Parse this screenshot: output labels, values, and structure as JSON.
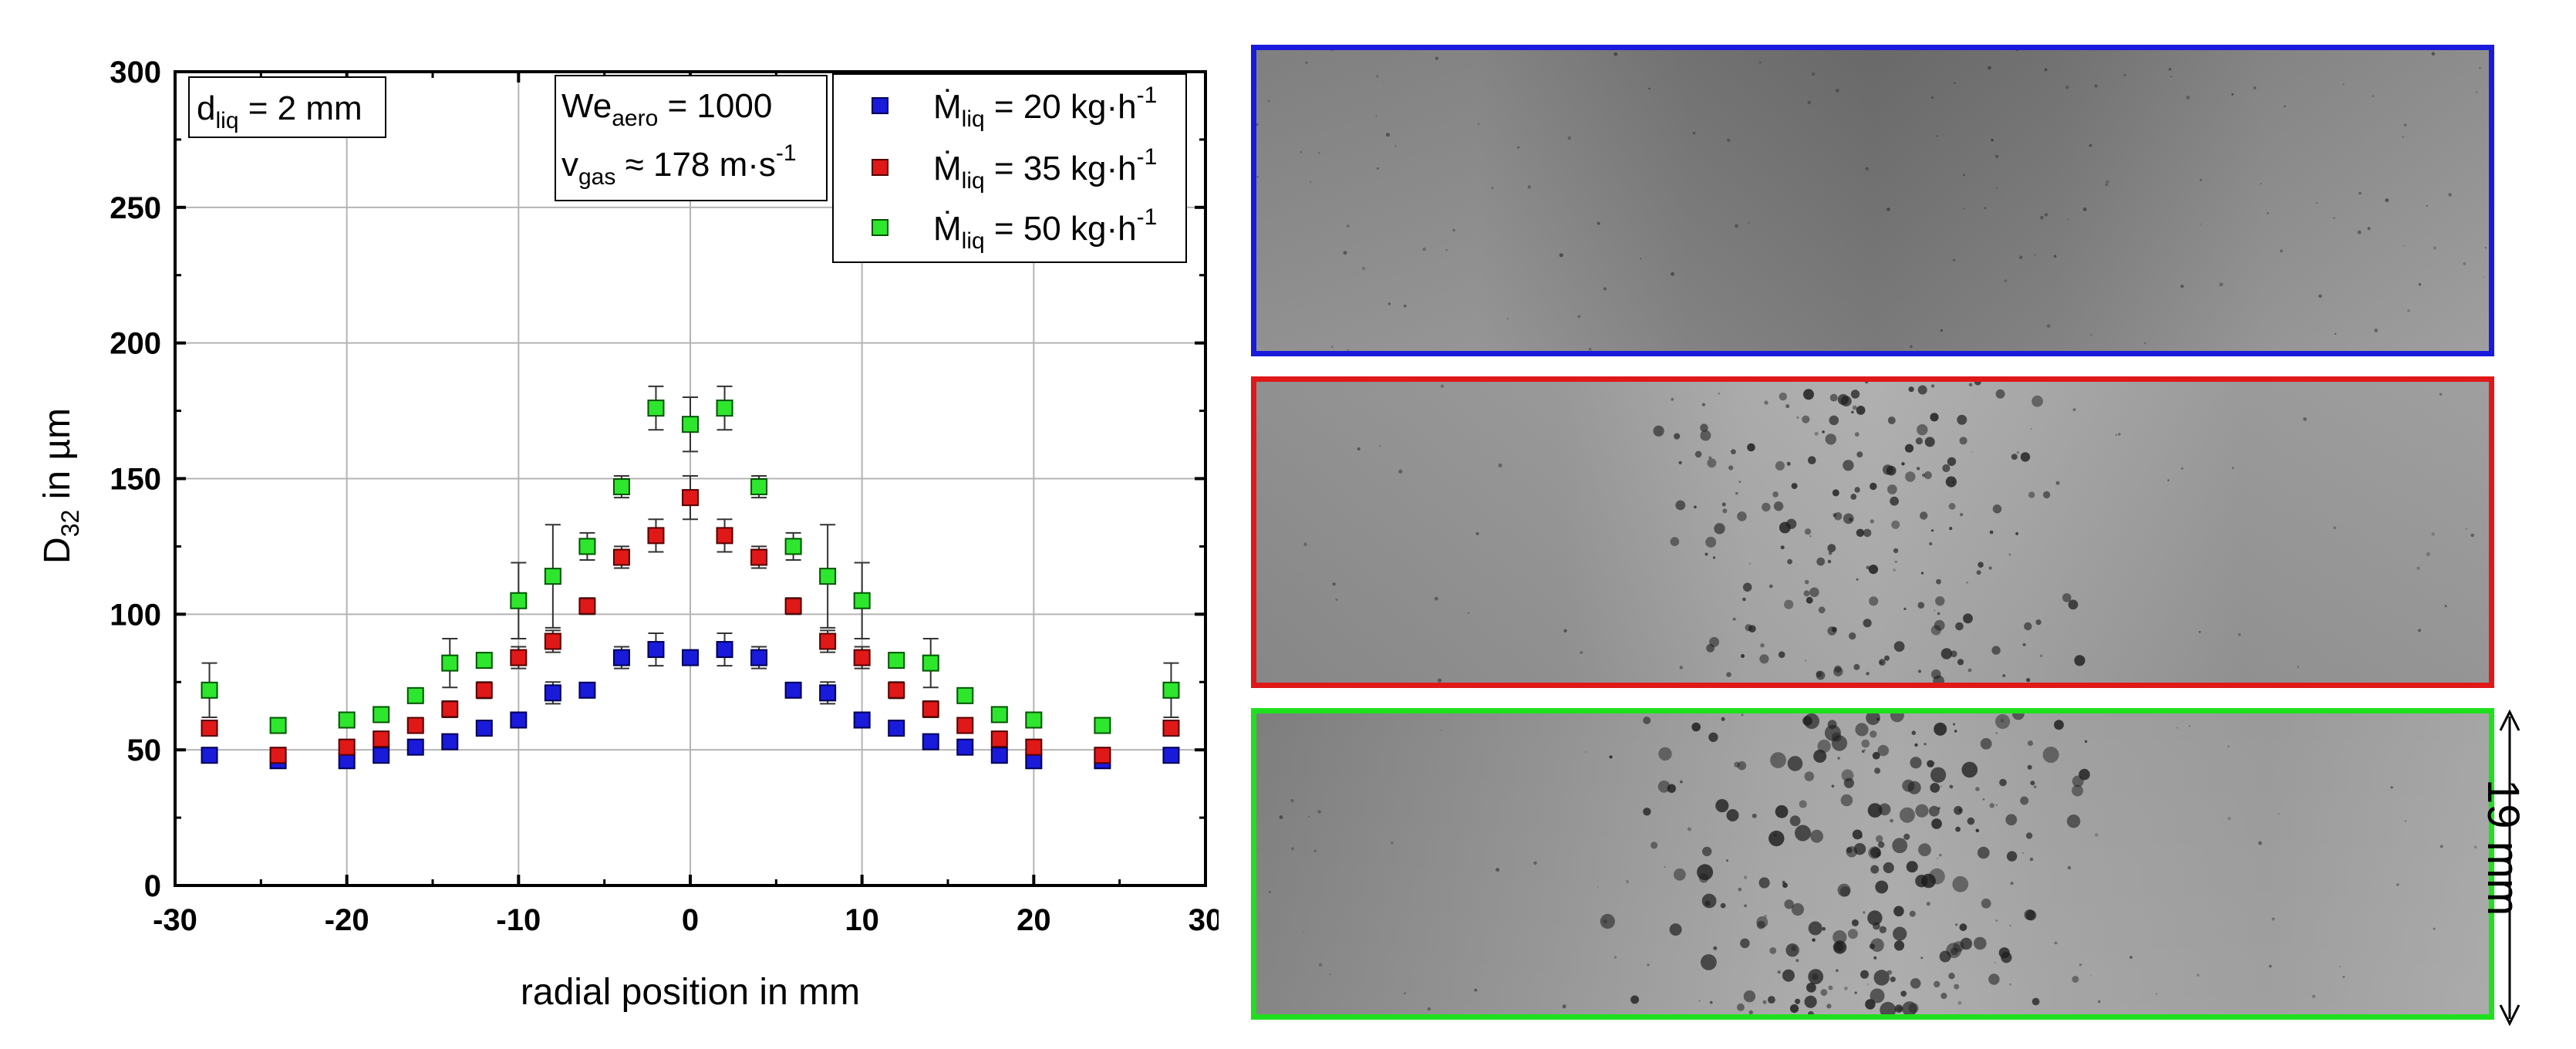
{
  "chart_data": {
    "type": "scatter",
    "xlabel": "radial position in mm",
    "ylabel_main": "D",
    "ylabel_sub": "32",
    "ylabel_rest": " in µm",
    "xlim": [
      -30,
      30
    ],
    "ylim": [
      0,
      300
    ],
    "x_ticks": [
      -30,
      -20,
      -10,
      0,
      10,
      20,
      30
    ],
    "x_tick_labels": [
      "-30",
      "-20",
      "-10",
      "0",
      "10",
      "20",
      "30"
    ],
    "y_ticks": [
      0,
      50,
      100,
      150,
      200,
      250,
      300
    ],
    "y_tick_labels": [
      "0",
      "50",
      "100",
      "150",
      "200",
      "250",
      "300"
    ],
    "grid": true,
    "legend_position": "top-right",
    "annotations": {
      "diameter": {
        "main": "d",
        "sub": "liq",
        "rest": " = 2 mm"
      },
      "weber": {
        "main": "We",
        "sub": "aero",
        "rest": " = 1000"
      },
      "velocity": {
        "main": "v",
        "sub": "gas",
        "rest": " ≈ 178 m·s",
        "sup": "-1"
      }
    },
    "series": [
      {
        "name": "Ṁliq = 20 kg·h-1",
        "label_main": "Ṁ",
        "label_sub": "liq",
        "label_rest": " = 20 kg·h",
        "label_sup": "-1",
        "color": "#1a1adb",
        "edge": "#000055",
        "x": [
          -28,
          -24,
          -20,
          -18,
          -16,
          -14,
          -12,
          -10,
          -8,
          -6,
          -4,
          -2,
          0,
          2,
          4,
          6,
          8,
          10,
          12,
          14,
          16,
          18,
          20,
          24,
          28
        ],
        "y": [
          48,
          46,
          46,
          48,
          51,
          53,
          58,
          61,
          71,
          72,
          84,
          87,
          84,
          87,
          84,
          72,
          71,
          61,
          58,
          53,
          51,
          48,
          46,
          46,
          48
        ],
        "err": [
          0,
          0,
          0,
          0,
          0,
          2,
          2,
          2,
          4,
          2,
          4,
          6,
          0,
          6,
          4,
          2,
          4,
          2,
          2,
          2,
          0,
          0,
          0,
          0,
          0
        ]
      },
      {
        "name": "Ṁliq = 35 kg·h-1",
        "label_main": "Ṁ",
        "label_sub": "liq",
        "label_rest": " = 35 kg·h",
        "label_sup": "-1",
        "color": "#e01818",
        "edge": "#550000",
        "x": [
          -28,
          -24,
          -20,
          -18,
          -16,
          -14,
          -12,
          -10,
          -8,
          -6,
          -4,
          -2,
          0,
          2,
          4,
          6,
          8,
          10,
          12,
          14,
          16,
          18,
          20,
          24,
          28
        ],
        "y": [
          58,
          48,
          51,
          54,
          59,
          65,
          72,
          84,
          90,
          103,
          121,
          129,
          143,
          129,
          121,
          103,
          90,
          84,
          72,
          65,
          59,
          54,
          51,
          48,
          58
        ],
        "err": [
          0,
          0,
          0,
          0,
          0,
          3,
          3,
          4,
          4,
          3,
          4,
          6,
          8,
          6,
          4,
          3,
          4,
          4,
          3,
          3,
          0,
          0,
          0,
          0,
          0
        ]
      },
      {
        "name": "Ṁliq = 50 kg·h-1",
        "label_main": "Ṁ",
        "label_sub": "liq",
        "label_rest": " = 50 kg·h",
        "label_sup": "-1",
        "color": "#2ee62e",
        "edge": "#005500",
        "x": [
          -28,
          -24,
          -20,
          -18,
          -16,
          -14,
          -12,
          -10,
          -8,
          -6,
          -4,
          -2,
          0,
          2,
          4,
          6,
          8,
          10,
          12,
          14,
          16,
          18,
          20,
          24,
          28
        ],
        "y": [
          72,
          59,
          61,
          63,
          70,
          82,
          83,
          105,
          114,
          125,
          147,
          176,
          170,
          176,
          147,
          125,
          114,
          105,
          83,
          82,
          70,
          63,
          61,
          59,
          72
        ],
        "err": [
          10,
          0,
          2,
          2,
          2,
          9,
          2,
          14,
          19,
          5,
          4,
          8,
          10,
          8,
          4,
          5,
          19,
          14,
          2,
          9,
          2,
          2,
          2,
          0,
          10
        ]
      }
    ]
  },
  "images": {
    "scale_label": "19 mm",
    "frames": [
      {
        "name": "photo-20",
        "border": "#1a1add"
      },
      {
        "name": "photo-35",
        "border": "#e01818"
      },
      {
        "name": "photo-50",
        "border": "#1ee01e"
      }
    ]
  }
}
